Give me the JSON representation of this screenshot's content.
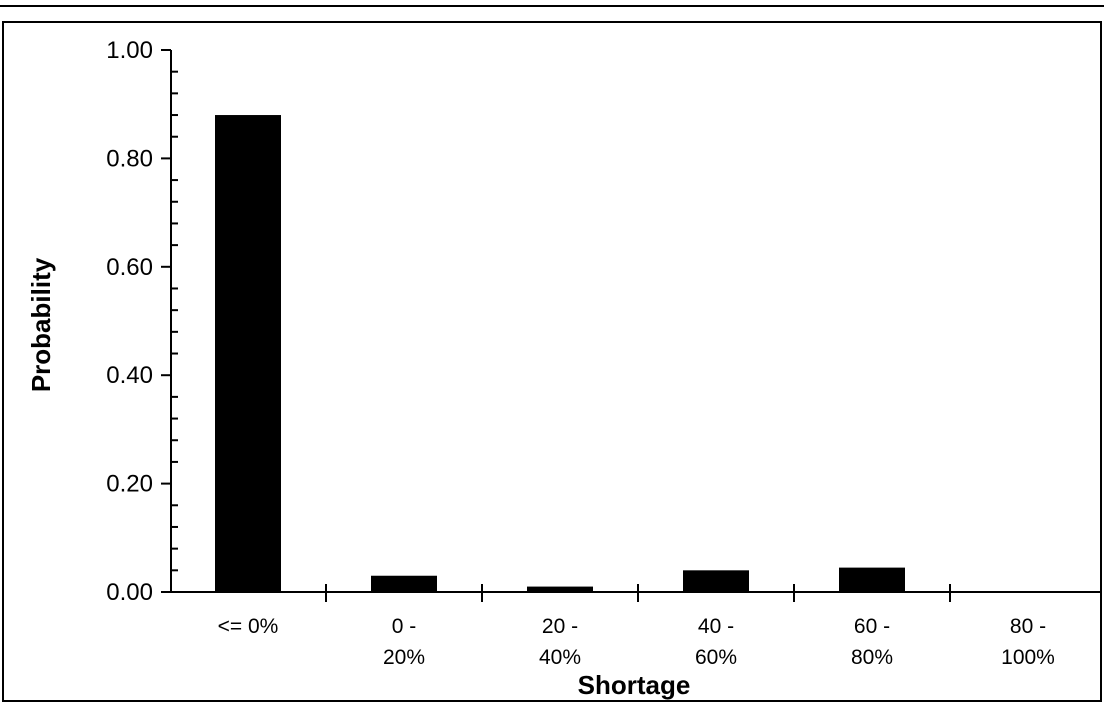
{
  "chart_data": {
    "type": "bar",
    "categories": [
      [
        "<= 0%"
      ],
      [
        "0 -",
        "20%"
      ],
      [
        "20 -",
        "40%"
      ],
      [
        "40 -",
        "60%"
      ],
      [
        "60 -",
        "80%"
      ],
      [
        "80 -",
        "100%"
      ]
    ],
    "values": [
      0.88,
      0.03,
      0.01,
      0.04,
      0.045,
      0.0
    ],
    "xlabel": "Shortage",
    "ylabel": "Probability",
    "ylim": [
      0,
      1.0
    ],
    "yticks": [
      "0.00",
      "0.20",
      "0.40",
      "0.60",
      "0.80",
      "1.00"
    ],
    "grid": false,
    "bar_color": "#000000"
  }
}
